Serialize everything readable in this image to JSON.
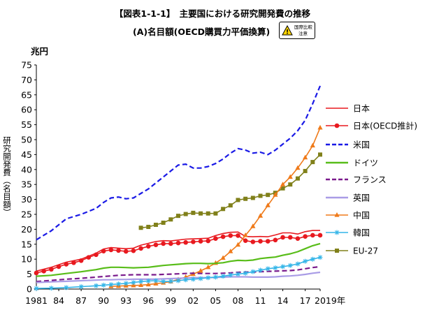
{
  "header": {
    "title": "【図表1-1-1】　主要国における研究開発費の推移",
    "subtitle": "(A)名目額(OECD購買力平価換算)",
    "badge": [
      "国際比較",
      "注意"
    ]
  },
  "chart_data": {
    "type": "line",
    "title": "【図表1-1-1】　主要国における研究開発費の推移",
    "subtitle": "(A)名目額(OECD購買力平価換算)",
    "ylabel": "研究開発費（名目額）",
    "yunit": "兆円",
    "xunit": "2019年",
    "ylim": [
      0,
      75
    ],
    "yticks": [
      0,
      5,
      10,
      15,
      20,
      25,
      30,
      35,
      40,
      45,
      50,
      55,
      60,
      65,
      70,
      75
    ],
    "xlim": [
      1981,
      2019
    ],
    "xtick_labels": [
      "1981",
      "84",
      "87",
      "90",
      "93",
      "96",
      "99",
      "02",
      "05",
      "08",
      "11",
      "14",
      "17",
      "2019年"
    ],
    "grid": false,
    "legend": "right",
    "series": [
      {
        "name": "日本",
        "color": "#e8191f",
        "style": "solid",
        "marker": "none",
        "x": [
          1981,
          1983,
          1985,
          1987,
          1989,
          1990,
          1991,
          1992,
          1993,
          1994,
          1995,
          1996,
          1997,
          1998,
          1999,
          2000,
          2001,
          2002,
          2003,
          2004,
          2005,
          2006,
          2007,
          2008,
          2009,
          2010,
          2011,
          2012,
          2013,
          2014,
          2015,
          2016,
          2017,
          2018,
          2019
        ],
        "values": [
          6.0,
          7.3,
          9.0,
          10.0,
          12.0,
          13.4,
          13.9,
          13.7,
          13.5,
          13.7,
          14.7,
          15.3,
          15.9,
          16.2,
          16.1,
          16.4,
          16.7,
          16.8,
          16.9,
          17.0,
          17.9,
          18.6,
          19.0,
          19.1,
          17.6,
          17.5,
          17.6,
          17.5,
          18.1,
          18.8,
          18.8,
          18.4,
          19.2,
          19.6,
          19.6
        ]
      },
      {
        "name": "日本(OECD推計)",
        "color": "#e8191f",
        "style": "solid",
        "marker": "circle",
        "x": [
          1981,
          1982,
          1983,
          1984,
          1985,
          1986,
          1987,
          1988,
          1989,
          1990,
          1991,
          1992,
          1993,
          1994,
          1995,
          1996,
          1997,
          1998,
          1999,
          2000,
          2001,
          2002,
          2003,
          2004,
          2005,
          2006,
          2007,
          2008,
          2009,
          2010,
          2011,
          2012,
          2013,
          2014,
          2015,
          2016,
          2017,
          2018,
          2019
        ],
        "values": [
          5.4,
          6.0,
          6.6,
          7.5,
          8.3,
          8.8,
          9.5,
          10.6,
          11.5,
          12.7,
          13.1,
          12.9,
          12.6,
          12.8,
          13.6,
          14.3,
          14.8,
          15.2,
          15.2,
          15.4,
          15.6,
          15.8,
          16.0,
          16.1,
          16.9,
          17.5,
          17.9,
          17.9,
          16.2,
          15.8,
          16.0,
          16.0,
          16.4,
          17.3,
          17.3,
          16.9,
          17.6,
          18.0,
          18.0
        ]
      },
      {
        "name": "米国",
        "color": "#1a1ae6",
        "style": "dashed",
        "marker": "none",
        "x": [
          1981,
          1983,
          1985,
          1987,
          1989,
          1990,
          1991,
          1992,
          1993,
          1994,
          1995,
          1996,
          1997,
          1998,
          1999,
          2000,
          2001,
          2002,
          2003,
          2004,
          2005,
          2006,
          2007,
          2008,
          2009,
          2010,
          2011,
          2012,
          2013,
          2014,
          2015,
          2016,
          2017,
          2018,
          2019
        ],
        "values": [
          16.5,
          19.5,
          23.5,
          25.0,
          27.0,
          29.0,
          30.5,
          30.8,
          30.2,
          30.5,
          32.0,
          33.5,
          35.5,
          37.5,
          39.5,
          41.5,
          41.8,
          40.5,
          40.5,
          41.0,
          42.0,
          43.5,
          45.5,
          47.0,
          46.5,
          45.5,
          45.8,
          45.0,
          46.5,
          48.5,
          50.5,
          53.0,
          56.5,
          62.0,
          68.0
        ]
      },
      {
        "name": "ドイツ",
        "color": "#58bd19",
        "style": "solid",
        "marker": "none",
        "x": [
          1981,
          1983,
          1985,
          1987,
          1989,
          1990,
          1991,
          1992,
          1993,
          1994,
          1995,
          1996,
          1997,
          1998,
          1999,
          2000,
          2001,
          2002,
          2003,
          2004,
          2005,
          2006,
          2007,
          2008,
          2009,
          2010,
          2011,
          2012,
          2013,
          2014,
          2015,
          2016,
          2017,
          2018,
          2019
        ],
        "values": [
          4.3,
          4.6,
          5.2,
          5.8,
          6.5,
          7.0,
          7.3,
          7.3,
          7.2,
          7.1,
          7.2,
          7.3,
          7.6,
          7.9,
          8.1,
          8.3,
          8.5,
          8.6,
          8.6,
          8.5,
          8.6,
          8.8,
          9.3,
          9.6,
          9.5,
          9.7,
          10.2,
          10.5,
          10.7,
          11.3,
          11.8,
          12.5,
          13.5,
          14.5,
          15.2
        ]
      },
      {
        "name": "フランス",
        "color": "#7a1a8c",
        "style": "dashed",
        "marker": "none",
        "x": [
          1981,
          1983,
          1985,
          1987,
          1989,
          1990,
          1991,
          1992,
          1993,
          1994,
          1995,
          1996,
          1997,
          1998,
          1999,
          2000,
          2001,
          2002,
          2003,
          2004,
          2005,
          2006,
          2007,
          2008,
          2009,
          2010,
          2011,
          2012,
          2013,
          2014,
          2015,
          2016,
          2017,
          2018,
          2019
        ],
        "values": [
          2.5,
          2.9,
          3.3,
          3.6,
          4.0,
          4.2,
          4.4,
          4.6,
          4.7,
          4.8,
          4.8,
          4.8,
          4.8,
          4.9,
          5.0,
          5.1,
          5.2,
          5.3,
          5.2,
          5.2,
          5.2,
          5.3,
          5.4,
          5.6,
          5.7,
          5.7,
          5.8,
          5.9,
          6.0,
          6.1,
          6.2,
          6.4,
          6.8,
          7.2,
          7.5
        ]
      },
      {
        "name": "英国",
        "color": "#a99ce6",
        "style": "solid",
        "marker": "none",
        "x": [
          1981,
          1983,
          1985,
          1987,
          1989,
          1990,
          1991,
          1992,
          1993,
          1994,
          1995,
          1996,
          1997,
          1998,
          1999,
          2000,
          2001,
          2002,
          2003,
          2004,
          2005,
          2006,
          2007,
          2008,
          2009,
          2010,
          2011,
          2012,
          2013,
          2014,
          2015,
          2016,
          2017,
          2018,
          2019
        ],
        "values": [
          2.2,
          2.4,
          2.6,
          2.8,
          3.0,
          3.1,
          3.1,
          3.2,
          3.2,
          3.3,
          3.3,
          3.3,
          3.3,
          3.4,
          3.5,
          3.6,
          3.7,
          3.8,
          3.8,
          3.8,
          3.9,
          4.0,
          4.1,
          4.1,
          4.1,
          4.0,
          4.0,
          4.0,
          4.1,
          4.3,
          4.4,
          4.6,
          4.9,
          5.3,
          5.6
        ]
      },
      {
        "name": "中国",
        "color": "#ef7a1a",
        "style": "solid",
        "marker": "triangle",
        "x": [
          1991,
          1992,
          1993,
          1994,
          1995,
          1996,
          1997,
          1998,
          1999,
          2000,
          2001,
          2002,
          2003,
          2004,
          2005,
          2006,
          2007,
          2008,
          2009,
          2010,
          2011,
          2012,
          2013,
          2014,
          2015,
          2016,
          2017,
          2018,
          2019
        ],
        "values": [
          0.9,
          1.0,
          1.1,
          1.2,
          1.3,
          1.5,
          1.8,
          2.1,
          2.5,
          3.2,
          4.0,
          5.0,
          6.1,
          7.3,
          8.7,
          10.4,
          12.6,
          14.8,
          18.0,
          21.0,
          24.5,
          28.0,
          31.5,
          35.0,
          37.5,
          40.5,
          44.0,
          48.0,
          54.0
        ]
      },
      {
        "name": "韓国",
        "color": "#33b5e8",
        "style": "solid",
        "marker": "star",
        "x": [
          1981,
          1983,
          1985,
          1987,
          1989,
          1990,
          1991,
          1992,
          1993,
          1994,
          1995,
          1996,
          1997,
          1998,
          1999,
          2000,
          2001,
          2002,
          2003,
          2004,
          2005,
          2006,
          2007,
          2008,
          2009,
          2010,
          2011,
          2012,
          2013,
          2014,
          2015,
          2016,
          2017,
          2018,
          2019
        ],
        "values": [
          0.2,
          0.3,
          0.5,
          0.8,
          1.1,
          1.3,
          1.5,
          1.7,
          1.9,
          2.2,
          2.5,
          2.7,
          2.8,
          2.5,
          2.6,
          2.8,
          3.1,
          3.3,
          3.5,
          3.8,
          4.0,
          4.3,
          4.7,
          5.0,
          5.3,
          5.8,
          6.3,
          6.8,
          7.1,
          7.5,
          7.9,
          8.4,
          9.3,
          10.0,
          10.6
        ]
      },
      {
        "name": "EU-27",
        "color": "#80801a",
        "style": "solid",
        "marker": "square",
        "x": [
          1995,
          1996,
          1997,
          1998,
          1999,
          2000,
          2001,
          2002,
          2003,
          2004,
          2005,
          2006,
          2007,
          2008,
          2009,
          2010,
          2011,
          2012,
          2013,
          2014,
          2015,
          2016,
          2017,
          2018,
          2019
        ],
        "values": [
          20.5,
          20.8,
          21.5,
          22.2,
          23.3,
          24.5,
          25.1,
          25.5,
          25.3,
          25.3,
          25.3,
          26.8,
          28.0,
          29.8,
          30.2,
          30.5,
          31.2,
          31.5,
          32.2,
          33.7,
          35.0,
          37.0,
          39.5,
          42.5,
          45.0
        ]
      }
    ]
  }
}
